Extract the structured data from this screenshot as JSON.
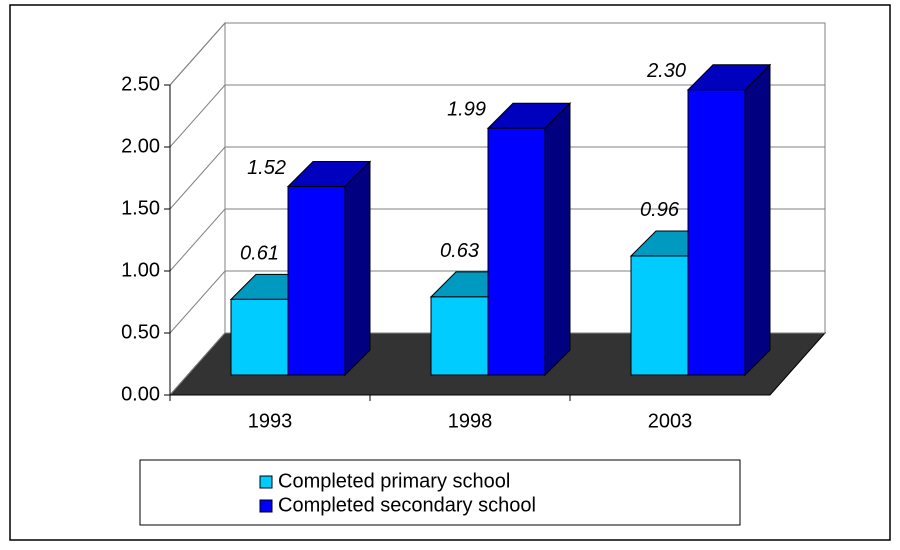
{
  "chart_data": {
    "type": "bar3d",
    "categories": [
      "1993",
      "1998",
      "2003"
    ],
    "series": [
      {
        "name": "Completed primary school",
        "color": "#00ccff",
        "values": [
          0.61,
          0.63,
          0.96
        ],
        "value_labels": [
          "0.61",
          "0.63",
          "0.96"
        ]
      },
      {
        "name": "Completed secondary school",
        "color": "#0000ff",
        "values": [
          1.52,
          1.99,
          2.3
        ],
        "value_labels": [
          "1.52",
          "1.99",
          "2.30"
        ]
      }
    ],
    "ylim": [
      0,
      2.5
    ],
    "yticks": [
      {
        "value": 0,
        "label": "0.00"
      },
      {
        "value": 0.5,
        "label": "0.50"
      },
      {
        "value": 1,
        "label": "1.00"
      },
      {
        "value": 1.5,
        "label": "1.50"
      },
      {
        "value": 2,
        "label": "2.00"
      },
      {
        "value": 2.5,
        "label": "2.50"
      }
    ],
    "grid": true
  }
}
